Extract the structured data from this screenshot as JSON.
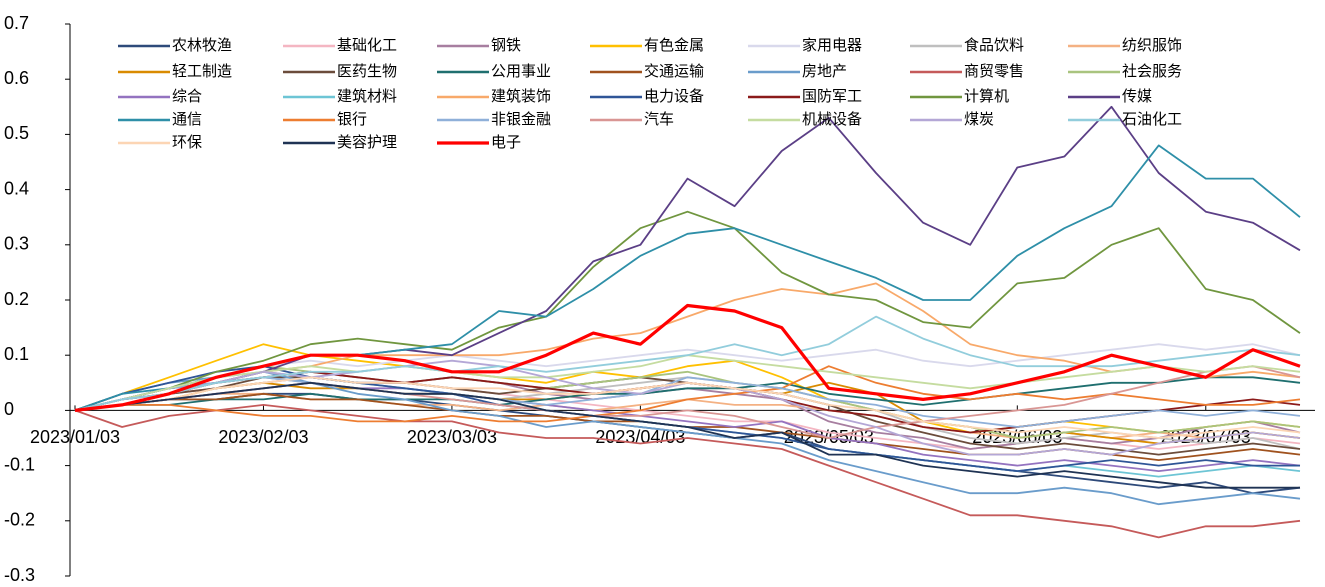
{
  "chart_data": {
    "type": "line",
    "categories": [
      "2023/01/03",
      null,
      null,
      null,
      "2023/02/03",
      null,
      null,
      null,
      "2023/03/03",
      null,
      null,
      null,
      "2023/04/03",
      null,
      null,
      null,
      "2023/05/03",
      null,
      null,
      null,
      "2023/06/03",
      null,
      null,
      null,
      "2023/07/03",
      null,
      null
    ],
    "ylim": [
      -0.3,
      0.7
    ],
    "yticks": [
      -0.3,
      -0.2,
      -0.1,
      0,
      0.1,
      0.2,
      0.3,
      0.4,
      0.5,
      0.6,
      0.7
    ],
    "series": [
      {
        "name": "农林牧渔",
        "color": "#2e4a7a",
        "values": [
          0,
          0.01,
          0.02,
          0.02,
          0.03,
          0.03,
          0.02,
          0.02,
          0.01,
          0,
          -0.01,
          -0.02,
          -0.03,
          -0.04,
          -0.05,
          -0.04,
          -0.07,
          -0.08,
          -0.09,
          -0.1,
          -0.11,
          -0.12,
          -0.13,
          -0.14,
          -0.13,
          -0.15,
          -0.14
        ]
      },
      {
        "name": "基础化工",
        "color": "#f4b6c2",
        "values": [
          0,
          0.02,
          0.04,
          0.05,
          0.06,
          0.07,
          0.06,
          0.05,
          0.04,
          0.03,
          0.02,
          0.01,
          0,
          -0.01,
          -0.02,
          -0.02,
          -0.04,
          -0.05,
          -0.06,
          -0.07,
          -0.06,
          -0.05,
          -0.06,
          -0.07,
          -0.06,
          -0.05,
          -0.06
        ]
      },
      {
        "name": "钢铁",
        "color": "#a77ea0",
        "values": [
          0,
          0.02,
          0.03,
          0.04,
          0.05,
          0.06,
          0.05,
          0.05,
          0.06,
          0.05,
          0.03,
          0.02,
          0.03,
          0.04,
          0.03,
          0.02,
          -0.02,
          -0.04,
          -0.05,
          -0.07,
          -0.06,
          -0.05,
          -0.06,
          -0.05,
          -0.03,
          -0.02,
          -0.04
        ]
      },
      {
        "name": "有色金属",
        "color": "#ffc000",
        "values": [
          0,
          0.03,
          0.06,
          0.09,
          0.12,
          0.1,
          0.09,
          0.08,
          0.07,
          0.06,
          0.05,
          0.07,
          0.06,
          0.08,
          0.09,
          0.06,
          0.02,
          0,
          -0.02,
          -0.04,
          -0.03,
          -0.02,
          -0.03,
          -0.04,
          -0.03,
          -0.02,
          -0.03
        ]
      },
      {
        "name": "家用电器",
        "color": "#d9d9ec",
        "values": [
          0,
          0.02,
          0.04,
          0.06,
          0.08,
          0.09,
          0.08,
          0.09,
          0.1,
          0.09,
          0.08,
          0.09,
          0.1,
          0.11,
          0.1,
          0.09,
          0.1,
          0.11,
          0.09,
          0.08,
          0.09,
          0.1,
          0.11,
          0.12,
          0.11,
          0.12,
          0.1
        ]
      },
      {
        "name": "食品饮料",
        "color": "#bfbfbf",
        "values": [
          0,
          0.02,
          0.04,
          0.05,
          0.06,
          0.05,
          0.04,
          0.03,
          0.03,
          0.02,
          0.03,
          0.04,
          0.05,
          0.06,
          0.05,
          0.04,
          0.02,
          0,
          -0.03,
          -0.05,
          -0.06,
          -0.05,
          -0.04,
          -0.05,
          -0.06,
          -0.05,
          -0.07
        ]
      },
      {
        "name": "纺织服饰",
        "color": "#f4b183",
        "values": [
          0,
          0.01,
          0.02,
          0.03,
          0.03,
          0.02,
          0.02,
          0.01,
          0.01,
          0,
          0.01,
          0,
          0.01,
          0.02,
          0.01,
          0.01,
          0,
          -0.01,
          -0.03,
          -0.04,
          -0.05,
          -0.04,
          -0.05,
          -0.04,
          -0.05,
          -0.04,
          -0.05
        ]
      },
      {
        "name": "轻工制造",
        "color": "#d98b00",
        "values": [
          0,
          0.01,
          0.02,
          0.04,
          0.05,
          0.04,
          0.04,
          0.03,
          0.03,
          0.02,
          0.02,
          0.03,
          0.04,
          0.05,
          0.04,
          0.03,
          0.05,
          0.03,
          -0.02,
          -0.03,
          -0.05,
          -0.04,
          -0.05,
          -0.06,
          -0.05,
          -0.04,
          -0.05
        ]
      },
      {
        "name": "医药生物",
        "color": "#6b4c3b",
        "values": [
          0,
          0.01,
          0.03,
          0.04,
          0.06,
          0.06,
          0.05,
          0.05,
          0.04,
          0.03,
          0.04,
          0.05,
          0.06,
          0.05,
          0.04,
          0.03,
          0.01,
          -0.02,
          -0.04,
          -0.06,
          -0.07,
          -0.06,
          -0.07,
          -0.08,
          -0.07,
          -0.06,
          -0.07
        ]
      },
      {
        "name": "公用事业",
        "color": "#1f6f6f",
        "values": [
          0,
          0.01,
          0.01,
          0.02,
          0.02,
          0.03,
          0.02,
          0.02,
          0.02,
          0.01,
          0.02,
          0.03,
          0.03,
          0.04,
          0.04,
          0.05,
          0.03,
          0.02,
          0.01,
          0.02,
          0.03,
          0.04,
          0.05,
          0.05,
          0.06,
          0.06,
          0.05
        ]
      },
      {
        "name": "交通运输",
        "color": "#a0521e",
        "values": [
          0,
          0.01,
          0.02,
          0.02,
          0.03,
          0.02,
          0.02,
          0.01,
          0,
          -0.01,
          -0.01,
          -0.02,
          -0.02,
          -0.03,
          -0.03,
          -0.04,
          -0.05,
          -0.06,
          -0.07,
          -0.08,
          -0.08,
          -0.07,
          -0.08,
          -0.09,
          -0.08,
          -0.07,
          -0.08
        ]
      },
      {
        "name": "房地产",
        "color": "#6a9ccb",
        "values": [
          0,
          0.03,
          0.05,
          0.06,
          0.07,
          0.05,
          0.03,
          0.02,
          0,
          -0.01,
          -0.03,
          -0.02,
          -0.03,
          -0.04,
          -0.05,
          -0.06,
          -0.09,
          -0.11,
          -0.13,
          -0.15,
          -0.15,
          -0.14,
          -0.15,
          -0.17,
          -0.16,
          -0.15,
          -0.16
        ]
      },
      {
        "name": "商贸零售",
        "color": "#c55a5a",
        "values": [
          0,
          -0.03,
          -0.01,
          0,
          0.01,
          0,
          -0.01,
          -0.02,
          -0.02,
          -0.04,
          -0.05,
          -0.05,
          -0.06,
          -0.05,
          -0.06,
          -0.07,
          -0.1,
          -0.13,
          -0.16,
          -0.19,
          -0.19,
          -0.2,
          -0.21,
          -0.23,
          -0.21,
          -0.21,
          -0.2
        ]
      },
      {
        "name": "社会服务",
        "color": "#a9c47f",
        "values": [
          0,
          0.02,
          0.04,
          0.06,
          0.08,
          0.07,
          0.06,
          0.05,
          0.06,
          0.05,
          0.04,
          0.05,
          0.06,
          0.07,
          0.05,
          0.04,
          0.02,
          0,
          -0.02,
          -0.03,
          -0.05,
          -0.04,
          -0.03,
          -0.04,
          -0.03,
          -0.02,
          -0.03
        ]
      },
      {
        "name": "综合",
        "color": "#9473c0",
        "values": [
          0,
          0.01,
          0.02,
          0.03,
          0.04,
          0.05,
          0.04,
          0.04,
          0.03,
          0.02,
          0.01,
          0,
          -0.01,
          -0.02,
          -0.03,
          -0.02,
          -0.05,
          -0.06,
          -0.08,
          -0.09,
          -0.1,
          -0.09,
          -0.1,
          -0.11,
          -0.1,
          -0.09,
          -0.1
        ]
      },
      {
        "name": "建筑材料",
        "color": "#6dc5d5",
        "values": [
          0,
          0.02,
          0.03,
          0.05,
          0.07,
          0.06,
          0.05,
          0.04,
          0.03,
          0.02,
          0,
          -0.01,
          -0.02,
          -0.03,
          -0.04,
          -0.05,
          -0.07,
          -0.08,
          -0.09,
          -0.1,
          -0.11,
          -0.1,
          -0.11,
          -0.12,
          -0.11,
          -0.1,
          -0.11
        ]
      },
      {
        "name": "建筑装饰",
        "color": "#f8a96a",
        "values": [
          0,
          0.02,
          0.03,
          0.05,
          0.07,
          0.08,
          0.1,
          0.1,
          0.1,
          0.1,
          0.11,
          0.13,
          0.14,
          0.17,
          0.2,
          0.22,
          0.21,
          0.23,
          0.18,
          0.12,
          0.1,
          0.09,
          0.07,
          0.08,
          0.06,
          0.07,
          0.06
        ]
      },
      {
        "name": "电力设备",
        "color": "#2f5597",
        "values": [
          0,
          0.03,
          0.05,
          0.07,
          0.08,
          0.06,
          0.05,
          0.04,
          0.03,
          0.01,
          0,
          -0.01,
          -0.02,
          -0.03,
          -0.04,
          -0.05,
          -0.07,
          -0.08,
          -0.09,
          -0.1,
          -0.11,
          -0.1,
          -0.09,
          -0.1,
          -0.09,
          -0.1,
          -0.1
        ]
      },
      {
        "name": "国防军工",
        "color": "#8b1a1a",
        "values": [
          0,
          0.02,
          0.03,
          0.05,
          0.06,
          0.07,
          0.06,
          0.05,
          0.06,
          0.05,
          0.04,
          0.03,
          0.04,
          0.05,
          0.04,
          0.02,
          0,
          -0.01,
          -0.03,
          -0.04,
          -0.03,
          -0.02,
          -0.01,
          0,
          0.01,
          0.02,
          0.01
        ]
      },
      {
        "name": "计算机",
        "color": "#70963f",
        "values": [
          0,
          0.02,
          0.04,
          0.07,
          0.09,
          0.12,
          0.13,
          0.12,
          0.11,
          0.15,
          0.17,
          0.26,
          0.33,
          0.36,
          0.33,
          0.25,
          0.21,
          0.2,
          0.16,
          0.15,
          0.23,
          0.24,
          0.3,
          0.33,
          0.22,
          0.2,
          0.14
        ]
      },
      {
        "name": "传媒",
        "color": "#5b3f86",
        "values": [
          0,
          0.02,
          0.04,
          0.05,
          0.07,
          0.1,
          0.1,
          0.11,
          0.1,
          0.14,
          0.18,
          0.27,
          0.3,
          0.42,
          0.37,
          0.47,
          0.53,
          0.43,
          0.34,
          0.3,
          0.44,
          0.46,
          0.55,
          0.43,
          0.36,
          0.34,
          0.29
        ]
      },
      {
        "name": "通信",
        "color": "#2e8fa8",
        "values": [
          0,
          0.03,
          0.04,
          0.06,
          0.08,
          0.1,
          0.1,
          0.11,
          0.12,
          0.18,
          0.17,
          0.22,
          0.28,
          0.32,
          0.33,
          0.3,
          0.27,
          0.24,
          0.2,
          0.2,
          0.28,
          0.33,
          0.37,
          0.48,
          0.42,
          0.42,
          0.35
        ]
      },
      {
        "name": "银行",
        "color": "#ed7d31",
        "values": [
          0,
          0.01,
          0.01,
          0,
          -0.01,
          -0.01,
          -0.02,
          -0.02,
          -0.01,
          -0.02,
          -0.02,
          -0.01,
          0,
          0.02,
          0.03,
          0.04,
          0.08,
          0.05,
          0.03,
          0.02,
          0.03,
          0.02,
          0.03,
          0.02,
          0.01,
          0.01,
          0.02
        ]
      },
      {
        "name": "非银金融",
        "color": "#8fb0d9",
        "values": [
          0,
          0.02,
          0.04,
          0.05,
          0.06,
          0.05,
          0.04,
          0.03,
          0.03,
          0.02,
          0.01,
          0.02,
          0.03,
          0.06,
          0.05,
          0.04,
          0.02,
          0.01,
          -0.01,
          -0.02,
          -0.03,
          -0.02,
          -0.01,
          0,
          -0.01,
          0,
          -0.01
        ]
      },
      {
        "name": "汽车",
        "color": "#d99694",
        "values": [
          0,
          0.01,
          0.02,
          0.03,
          0.04,
          0.05,
          0.04,
          0.03,
          0.02,
          0.01,
          0,
          -0.01,
          -0.01,
          0,
          -0.01,
          -0.03,
          -0.05,
          -0.03,
          -0.02,
          -0.01,
          0,
          0.01,
          0.03,
          0.05,
          0.07,
          0.08,
          0.06
        ]
      },
      {
        "name": "机械设备",
        "color": "#c5dca0",
        "values": [
          0,
          0.02,
          0.04,
          0.06,
          0.07,
          0.08,
          0.07,
          0.08,
          0.07,
          0.06,
          0.06,
          0.07,
          0.08,
          0.1,
          0.09,
          0.08,
          0.07,
          0.06,
          0.05,
          0.04,
          0.05,
          0.06,
          0.07,
          0.08,
          0.07,
          0.08,
          0.07
        ]
      },
      {
        "name": "煤炭",
        "color": "#b4a7d6",
        "values": [
          0,
          0.02,
          0.03,
          0.05,
          0.07,
          0.06,
          0.07,
          0.08,
          0.09,
          0.08,
          0.06,
          0.04,
          0.03,
          0.05,
          0.04,
          0.02,
          -0.01,
          -0.03,
          -0.06,
          -0.08,
          -0.08,
          -0.07,
          -0.08,
          -0.06,
          -0.05,
          -0.04,
          -0.05
        ]
      },
      {
        "name": "石油化工",
        "color": "#92cddc",
        "values": [
          0,
          0.02,
          0.03,
          0.05,
          0.06,
          0.07,
          0.07,
          0.08,
          0.07,
          0.08,
          0.07,
          0.08,
          0.09,
          0.1,
          0.12,
          0.1,
          0.12,
          0.17,
          0.13,
          0.1,
          0.08,
          0.08,
          0.08,
          0.09,
          0.1,
          0.11,
          0.1
        ]
      },
      {
        "name": "环保",
        "color": "#fcd5b4",
        "values": [
          0,
          0.01,
          0.02,
          0.04,
          0.05,
          0.06,
          0.05,
          0.05,
          0.04,
          0.04,
          0.03,
          0.03,
          0.04,
          0.05,
          0.04,
          0.03,
          0.01,
          0,
          -0.02,
          -0.03,
          -0.04,
          -0.03,
          -0.04,
          -0.05,
          -0.04,
          -0.03,
          -0.04
        ]
      },
      {
        "name": "美容护理",
        "color": "#1f3354",
        "values": [
          0,
          0.01,
          0.02,
          0.03,
          0.04,
          0.05,
          0.04,
          0.03,
          0.03,
          0.02,
          0,
          -0.01,
          -0.02,
          -0.03,
          -0.05,
          -0.04,
          -0.08,
          -0.08,
          -0.1,
          -0.11,
          -0.12,
          -0.11,
          -0.12,
          -0.13,
          -0.14,
          -0.14,
          -0.14
        ]
      },
      {
        "name": "电子",
        "color": "#ff0000",
        "values": [
          0,
          0.01,
          0.03,
          0.06,
          0.08,
          0.1,
          0.1,
          0.09,
          0.07,
          0.07,
          0.1,
          0.14,
          0.12,
          0.19,
          0.18,
          0.15,
          0.04,
          0.03,
          0.02,
          0.03,
          0.05,
          0.07,
          0.1,
          0.08,
          0.06,
          0.11,
          0.08
        ]
      }
    ]
  }
}
